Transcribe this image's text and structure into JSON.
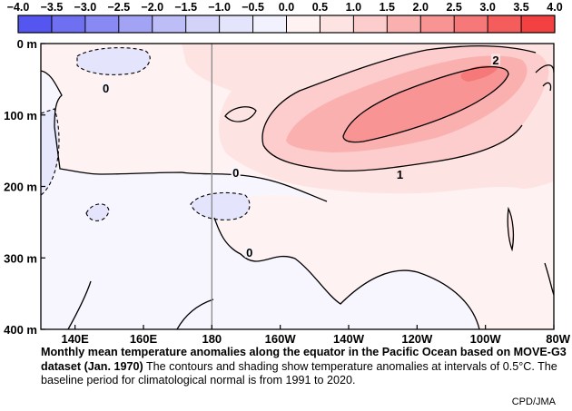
{
  "colorbar": {
    "ticks": [
      "−4.0",
      "−3.5",
      "−3.0",
      "−2.5",
      "−2.0",
      "−1.5",
      "−1.0",
      "−0.5",
      "0.0",
      "0.5",
      "1.0",
      "1.5",
      "2.0",
      "2.5",
      "3.0",
      "3.5",
      "4.0"
    ],
    "colors": [
      "#5555f0",
      "#6f6ff2",
      "#8989f4",
      "#a3a3f6",
      "#bdbdf8",
      "#d3d3fa",
      "#e4e4fc",
      "#f2f2fe",
      "#fff2f2",
      "#fee3e3",
      "#fdcccc",
      "#fbb0b0",
      "#f99494",
      "#f77878",
      "#f55c5c",
      "#f34040"
    ]
  },
  "chart_data": {
    "type": "heatmap",
    "x_ticks": [
      "140E",
      "160E",
      "180",
      "160W",
      "140W",
      "120W",
      "100W",
      "80W"
    ],
    "x_tick_values": [
      140,
      160,
      180,
      200,
      220,
      240,
      260,
      280
    ],
    "xlim": [
      130,
      280
    ],
    "y_ticks": [
      "0 m",
      "100 m",
      "200 m",
      "300 m",
      "400 m"
    ],
    "y_tick_values": [
      0,
      100,
      200,
      300,
      400
    ],
    "ylim": [
      0,
      400
    ],
    "contour_labels": [
      {
        "text": "2",
        "x": 263,
        "depth": 23
      },
      {
        "text": "0",
        "x": 149,
        "depth": 62
      },
      {
        "text": "1",
        "x": 235,
        "depth": 183
      },
      {
        "text": "0",
        "x": 187,
        "depth": 180
      },
      {
        "text": "0",
        "x": 191,
        "depth": 292
      }
    ],
    "reference_line_x": 180
  },
  "caption": {
    "title": "Monthly mean temperature anomalies along the equator in the Pacific Ocean based on MOVE-G3 dataset (Jan. 1970)",
    "body": " The contours and shading show temperature anomalies at intervals of 0.5°C.  The baseline period for climatological normal is from 1991 to 2020.",
    "credit": "CPD/JMA"
  }
}
